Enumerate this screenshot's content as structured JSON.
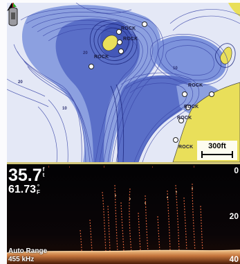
{
  "chart": {
    "rock_labels": [
      "ROCK",
      "ROCK",
      "ROCK",
      "ROCK",
      "ROCK",
      "ROCK",
      "ROCK",
      "ROCK"
    ],
    "depth_marks": [
      "20",
      "20",
      "10",
      "10"
    ],
    "scale_label": "300ft",
    "colors": {
      "water_deep": "#2f3da0",
      "water_mid": "#6f88d8",
      "water_light": "#b9c6ee",
      "land": "#e9df5a",
      "contour": "#3a46a8"
    },
    "icons": {
      "north": "north-arrow-icon",
      "boat": "boat-icon",
      "rock": "rock-marker-icon"
    }
  },
  "sonar": {
    "depth_value": "35.7",
    "depth_unit_top": "f",
    "depth_unit_bottom": "t",
    "temp_value": "61.73",
    "temp_unit_top": "°",
    "temp_unit_bottom": "F",
    "scale_top": "0",
    "scale_mid": "20",
    "scale_bottom": "40",
    "range_mode": "Auto Range",
    "frequency": "455 kHz",
    "colors": {
      "background": "#050305",
      "returns": "#d6603a",
      "bottom": "#e6b47a"
    }
  }
}
